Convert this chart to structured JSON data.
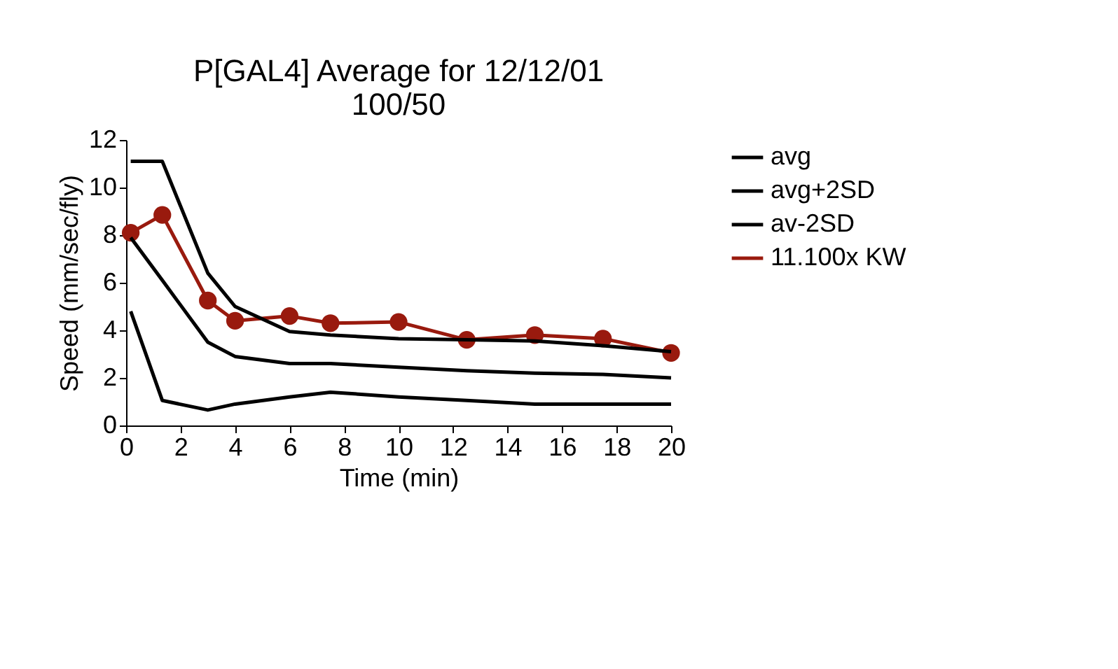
{
  "chart_data": {
    "type": "line",
    "title": [
      "P[GAL4] Average for 12/12/01",
      "100/50"
    ],
    "xlabel": "Time (min)",
    "ylabel": "Speed (mm/sec/fly)",
    "x": [
      0.17,
      1.33,
      3,
      4,
      6,
      7.5,
      10,
      12.5,
      15,
      17.5,
      20
    ],
    "xlim": [
      0,
      20
    ],
    "xticks": [
      0,
      2,
      4,
      6,
      8,
      10,
      12,
      14,
      16,
      18,
      20
    ],
    "ylim": [
      0,
      12
    ],
    "yticks": [
      0,
      2,
      4,
      6,
      8,
      10,
      12
    ],
    "grid": false,
    "legend": "right",
    "series": [
      {
        "name": "avg",
        "color": "#000000",
        "marker": "none",
        "values": [
          7.9,
          6.1,
          3.5,
          2.9,
          2.6,
          2.6,
          2.45,
          2.3,
          2.2,
          2.15,
          2.0
        ]
      },
      {
        "name": "avg+2SD",
        "color": "#000000",
        "marker": "none",
        "values": [
          11.1,
          11.1,
          6.4,
          5.0,
          3.95,
          3.8,
          3.65,
          3.6,
          3.55,
          3.35,
          3.1
        ]
      },
      {
        "name": "av-2SD",
        "color": "#000000",
        "marker": "none",
        "values": [
          4.8,
          1.05,
          0.65,
          0.9,
          1.2,
          1.4,
          1.2,
          1.05,
          0.9,
          0.9,
          0.9
        ]
      },
      {
        "name": "11.100x KW",
        "color": "#991a0e",
        "marker": "circle",
        "values": [
          8.1,
          8.85,
          5.25,
          4.4,
          4.6,
          4.3,
          4.35,
          3.6,
          3.8,
          3.65,
          3.05
        ]
      }
    ]
  }
}
